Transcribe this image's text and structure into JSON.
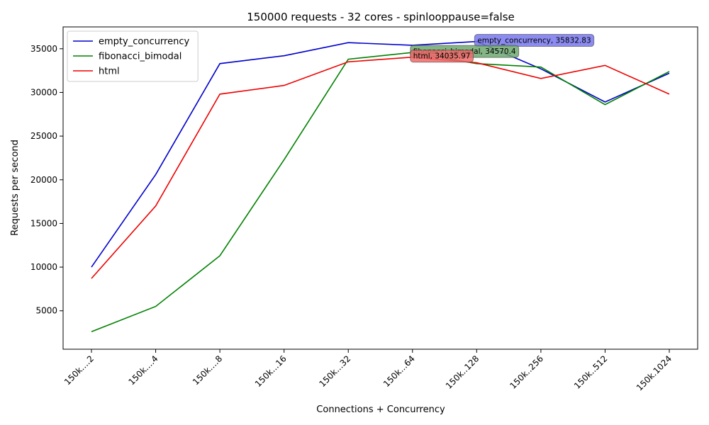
{
  "chart_data": {
    "type": "line",
    "title": "150000 requests - 32 cores - spinlooppause=false",
    "xlabel": "Connections + Concurrency",
    "ylabel": "Requests per second",
    "categories": [
      "150k....2",
      "150k....4",
      "150k....8",
      "150k...16",
      "150k...32",
      "150k...64",
      "150k..128",
      "150k..256",
      "150k..512",
      "150k.1024"
    ],
    "ylim": [
      600,
      37500
    ],
    "yticks": [
      5000,
      10000,
      15000,
      20000,
      25000,
      30000,
      35000
    ],
    "legend_position": "top-left",
    "grid": false,
    "series": [
      {
        "name": "empty_concurrency",
        "color": "#0000cc",
        "values": [
          10000,
          20600,
          33300,
          34200,
          35700,
          35400,
          35832.83,
          32700,
          28900,
          32200
        ]
      },
      {
        "name": "fibonacci_bimodal",
        "color": "#008000",
        "values": [
          2600,
          5500,
          11300,
          22300,
          33800,
          34570.4,
          33300,
          32900,
          28600,
          32400
        ]
      },
      {
        "name": "html",
        "color": "#ee0000",
        "values": [
          8700,
          17000,
          29800,
          30800,
          33500,
          34035.97,
          33400,
          31600,
          33100,
          29800
        ]
      }
    ],
    "annotations": [
      {
        "series": 0,
        "index": 6,
        "text": "empty_concurrency, 35832.83",
        "bg": "#7777ee"
      },
      {
        "series": 1,
        "index": 5,
        "text": "fibonacci_bimodal, 34570.4",
        "bg": "#6fa86f"
      },
      {
        "series": 2,
        "index": 5,
        "text": "html, 34035.97",
        "bg": "#ee6a6a"
      }
    ]
  }
}
